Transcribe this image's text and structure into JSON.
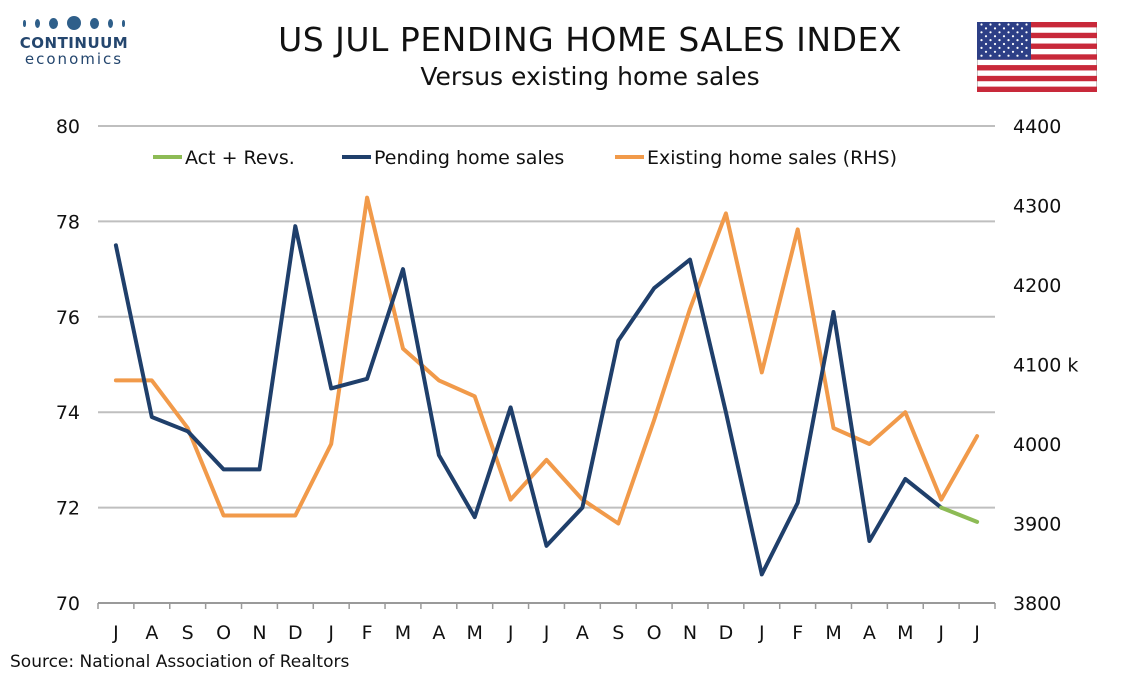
{
  "header": {
    "logo_name": "CONTINUUM",
    "logo_sub": "economics",
    "title": "US JUL PENDING HOME SALES INDEX",
    "subtitle": "Versus existing home sales"
  },
  "footer": {
    "source": "Source: National Association of Realtors"
  },
  "colors": {
    "pending": "#1f3f6b",
    "existing": "#f19a4a",
    "revisions": "#8dbb55",
    "grid": "#bfbfbf",
    "axis": "#9a9a9a",
    "flag_red": "#c8293a",
    "flag_blue": "#2d3f86"
  },
  "icons": {
    "logo": "continuum-dots-logo",
    "flag": "us-flag-icon"
  },
  "chart_data": {
    "type": "line",
    "categories": [
      "J",
      "A",
      "S",
      "O",
      "N",
      "D",
      "J",
      "F",
      "M",
      "A",
      "M",
      "J",
      "J",
      "A",
      "S",
      "O",
      "N",
      "D",
      "J",
      "F",
      "M",
      "A",
      "M",
      "J",
      "J"
    ],
    "y_left": {
      "ylim": [
        70,
        80
      ],
      "ticks": [
        "70",
        "72",
        "74",
        "76",
        "78",
        "80"
      ]
    },
    "y_right": {
      "ylim": [
        3800,
        4400
      ],
      "ticks": [
        "3800",
        "3900",
        "4000",
        "4100",
        "4200",
        "4300",
        "4400"
      ],
      "unit_label": "4100 k"
    },
    "grid": true,
    "legend": {
      "position": "top",
      "entries": [
        "Act + Revs.",
        "Pending home sales",
        "Existing home sales (RHS)"
      ]
    },
    "series": [
      {
        "name": "Pending home sales",
        "axis": "left",
        "values": [
          77.5,
          73.9,
          73.6,
          72.8,
          72.8,
          77.9,
          74.5,
          74.7,
          77.0,
          73.1,
          71.8,
          74.1,
          71.2,
          72.0,
          75.5,
          76.6,
          77.2,
          74.0,
          70.6,
          72.1,
          76.1,
          71.3,
          72.6,
          72.0,
          null
        ]
      },
      {
        "name": "Act + Revs.",
        "axis": "left",
        "values": [
          null,
          null,
          null,
          null,
          null,
          null,
          null,
          null,
          null,
          null,
          null,
          null,
          null,
          null,
          null,
          null,
          null,
          null,
          null,
          null,
          null,
          null,
          null,
          72.0,
          71.7
        ]
      },
      {
        "name": "Existing home sales (RHS)",
        "axis": "right",
        "values": [
          4080,
          4080,
          4020,
          3910,
          3910,
          3910,
          4000,
          4310,
          4120,
          4080,
          4060,
          3930,
          3980,
          3930,
          3900,
          4030,
          4170,
          4290,
          4090,
          4270,
          4020,
          4000,
          4040,
          3930,
          4010
        ]
      }
    ]
  }
}
